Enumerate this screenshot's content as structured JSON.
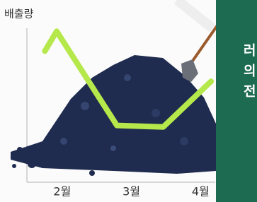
{
  "chart_data": {
    "type": "line",
    "y_label": "배출량",
    "xlim": [
      1.49,
      4.17
    ],
    "xticks": [
      {
        "value": 2,
        "label": "2월"
      },
      {
        "value": 3,
        "label": "3월"
      },
      {
        "value": 4,
        "label": "4월"
      }
    ],
    "ylim": [
      0,
      100
    ],
    "series": [
      {
        "color": "#b5e84a",
        "x": [
          1.75,
          1.92,
          2.79,
          3.46,
          4.15
        ],
        "values": [
          85,
          98,
          36,
          35,
          65
        ]
      }
    ]
  },
  "panel_text": [
    "러",
    "의",
    "전"
  ]
}
